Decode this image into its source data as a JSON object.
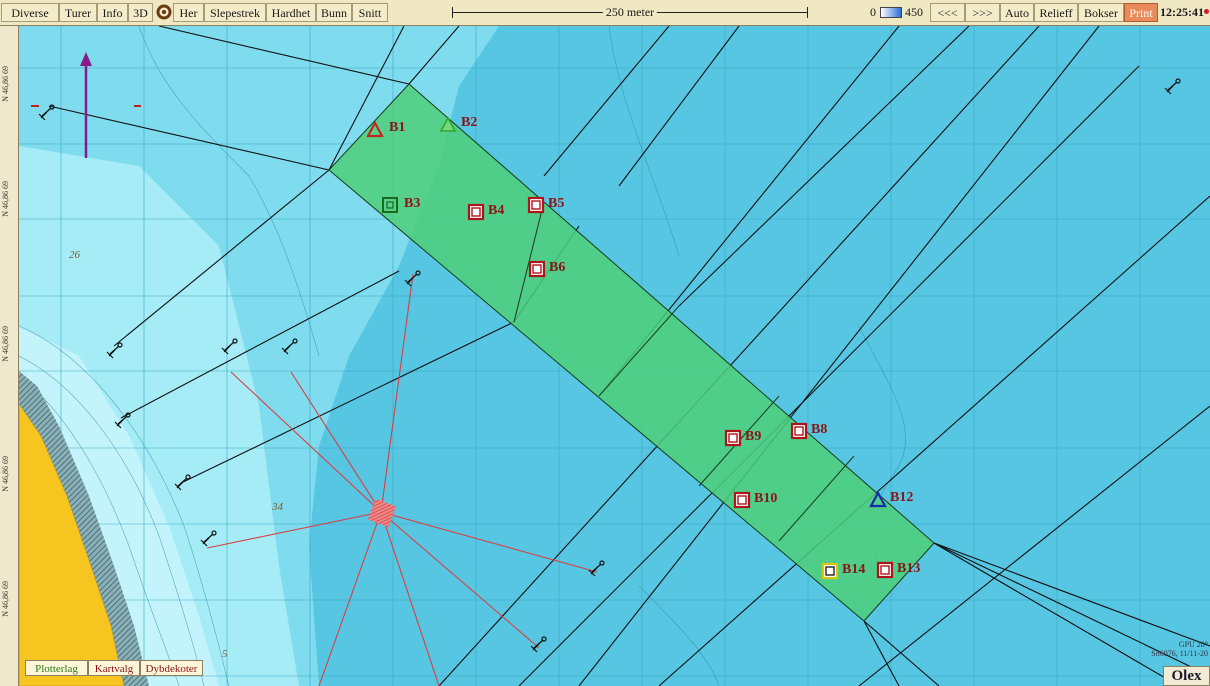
{
  "toolbar": {
    "buttons": [
      "Diverse",
      "Turer",
      "Info",
      "3D",
      "Her",
      "Slepestrek",
      "Hardhet",
      "Bunn",
      "Snitt"
    ],
    "scale_label": "250 meter",
    "depth_min": "0",
    "depth_max": "450",
    "right_buttons": [
      "<<<",
      ">>>",
      "Auto",
      "Relieff",
      "Bokser",
      "Print"
    ],
    "clock": "12:25:41"
  },
  "chart": {
    "latitude_labels": [
      "N 46,86 69",
      "N 46,86 69",
      "N 46,86 69",
      "N 46,86 69",
      "N 46,86 69"
    ],
    "depth_numbers": [
      "26",
      "34",
      "5"
    ],
    "waypoints": [
      {
        "label": "B1",
        "shape": "triangle",
        "color": "#c0281e"
      },
      {
        "label": "B2",
        "shape": "triangle",
        "color": "#2ea82e"
      },
      {
        "label": "B3",
        "shape": "square",
        "color": "#2a8a2a"
      },
      {
        "label": "B4",
        "shape": "square",
        "color": "#c0181e"
      },
      {
        "label": "B5",
        "shape": "square",
        "color": "#c0181e"
      },
      {
        "label": "B6",
        "shape": "square",
        "color": "#c0181e"
      },
      {
        "label": "B8",
        "shape": "square",
        "color": "#c0181e"
      },
      {
        "label": "B9",
        "shape": "square",
        "color": "#c0181e"
      },
      {
        "label": "B10",
        "shape": "square",
        "color": "#c0181e"
      },
      {
        "label": "B12",
        "shape": "triangle",
        "color": "#1a2aa8"
      },
      {
        "label": "B13",
        "shape": "square",
        "color": "#c0181e"
      },
      {
        "label": "B14",
        "shape": "square",
        "color": "#e8d820"
      }
    ],
    "info_line1": "GPU 28°",
    "info_line2": "Sn6076, 11/11-20"
  },
  "bottom_tabs": [
    "Plotterlag",
    "Kartvalg",
    "Dybdekoter"
  ],
  "brand": "Olex",
  "colors": {
    "zone_fill": "#4dcf7a",
    "land": "#f7c520",
    "deep_water": "#5bcbe6",
    "shallow_water": "#a8eef8",
    "route_line": "#d84040",
    "north_arrow": "#8a1a8a"
  }
}
